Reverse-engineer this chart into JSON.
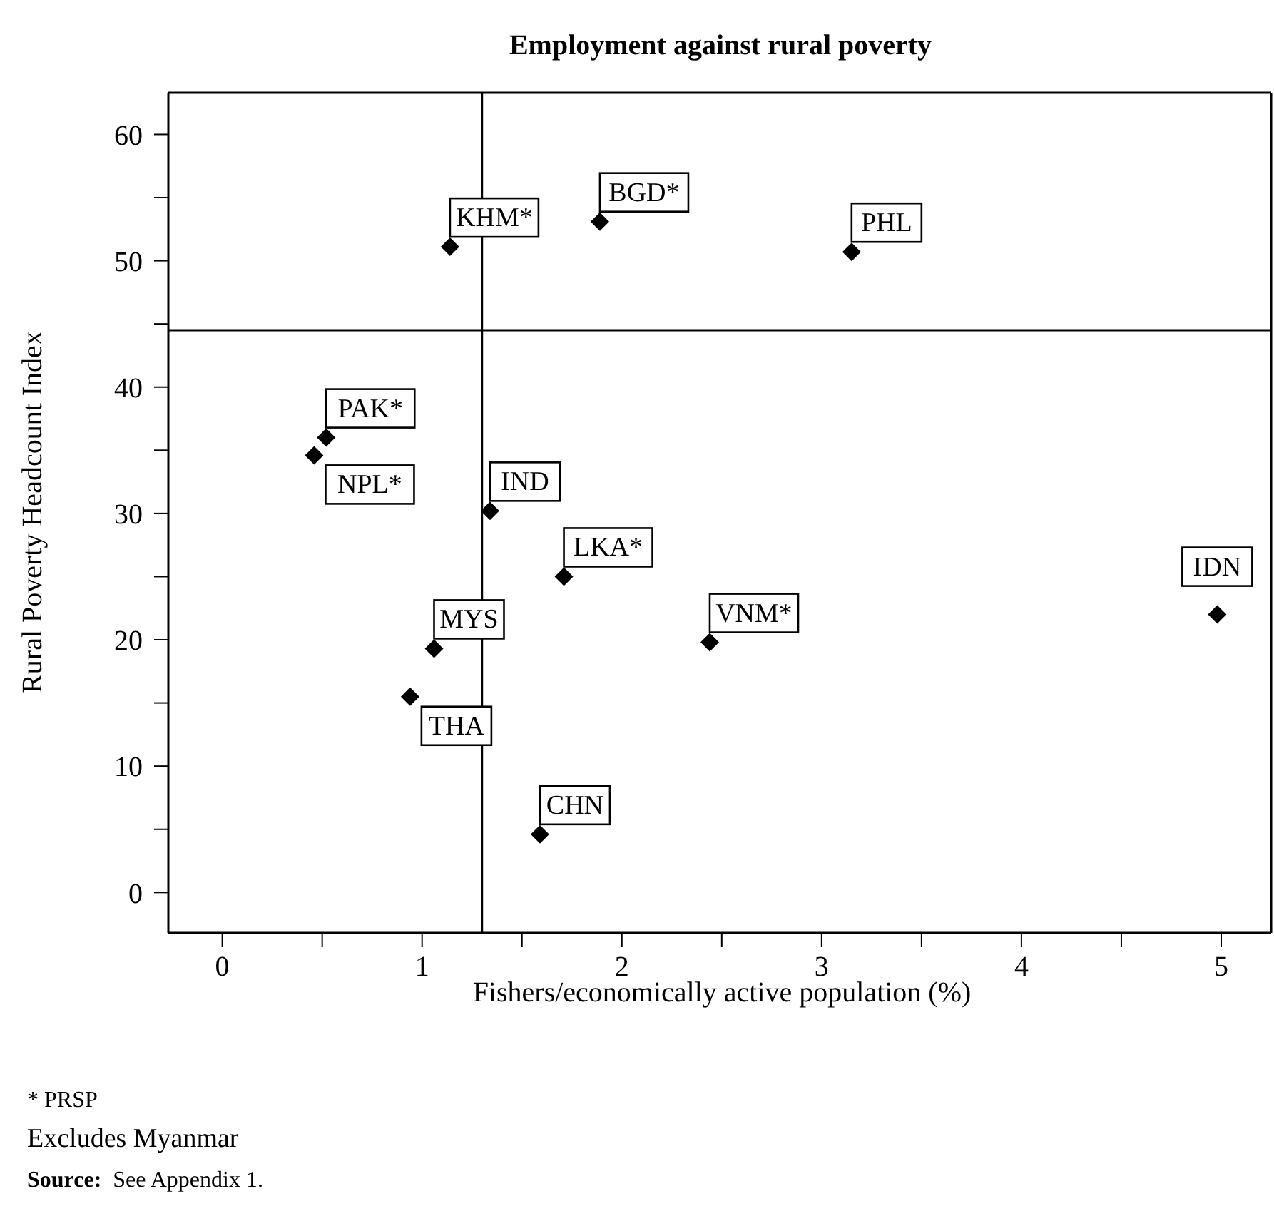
{
  "chart_data": {
    "type": "scatter",
    "title": "Employment against rural poverty",
    "xlabel": "Fishers/economically active population (%)",
    "ylabel": "Rural Poverty Headcount Index",
    "x": [
      1.14,
      1.89,
      3.15,
      0.52,
      0.46,
      1.34,
      1.71,
      1.06,
      0.94,
      2.44,
      1.59,
      4.98
    ],
    "series": [
      {
        "color": "#000000",
        "values": [
          51.1,
          53.1,
          50.7,
          36.0,
          34.6,
          30.2,
          25.0,
          19.3,
          15.5,
          19.8,
          4.6,
          22.0
        ]
      }
    ],
    "marker": "diamond",
    "legend": false,
    "xlim": [
      -0.27,
      5.25
    ],
    "ylim": [
      -3.2,
      63.3
    ],
    "xticks": [
      0,
      {
        "value": 0.5,
        "label": null
      },
      1,
      {
        "value": 1.5,
        "label": null
      },
      2,
      {
        "value": 2.5,
        "label": null
      },
      3,
      {
        "value": 3.5,
        "label": null
      },
      4,
      {
        "value": 4.5,
        "label": null
      },
      5
    ],
    "yticks": [
      0,
      {
        "value": 5,
        "label": null
      },
      10,
      {
        "value": 15,
        "label": null
      },
      20,
      {
        "value": 25,
        "label": null
      },
      30,
      {
        "value": 35,
        "label": null
      },
      40,
      {
        "value": 45,
        "label": null
      },
      50,
      {
        "value": 55,
        "label": null
      },
      60
    ],
    "ref_lines": [
      {
        "axis": "x",
        "value": 1.3,
        "color": "#000000"
      },
      {
        "axis": "y",
        "value": 44.5,
        "color": "#000000"
      }
    ],
    "annotations": [
      {
        "text": "KHM*",
        "x": 1.14,
        "y": 51.1
      },
      {
        "text": "BGD*",
        "x": 1.89,
        "y": 53.1
      },
      {
        "text": "PHL",
        "x": 3.15,
        "y": 50.7
      },
      {
        "text": "PAK*",
        "x": 0.52,
        "y": 36.0
      },
      {
        "text": "NPL*",
        "x": 0.46,
        "y": 34.6
      },
      {
        "text": "IND",
        "x": 1.34,
        "y": 30.2
      },
      {
        "text": "LKA*",
        "x": 1.71,
        "y": 25.0
      },
      {
        "text": "MYS",
        "x": 1.06,
        "y": 19.3
      },
      {
        "text": "THA",
        "x": 0.94,
        "y": 15.5
      },
      {
        "text": "VNM*",
        "x": 2.44,
        "y": 19.8
      },
      {
        "text": "CHN",
        "x": 1.59,
        "y": 4.6
      },
      {
        "text": "IDN",
        "x": 4.98,
        "y": 22.0
      },
      "* PRSP",
      "Excludes Myanmar",
      "Source: See Appendix 1."
    ]
  }
}
